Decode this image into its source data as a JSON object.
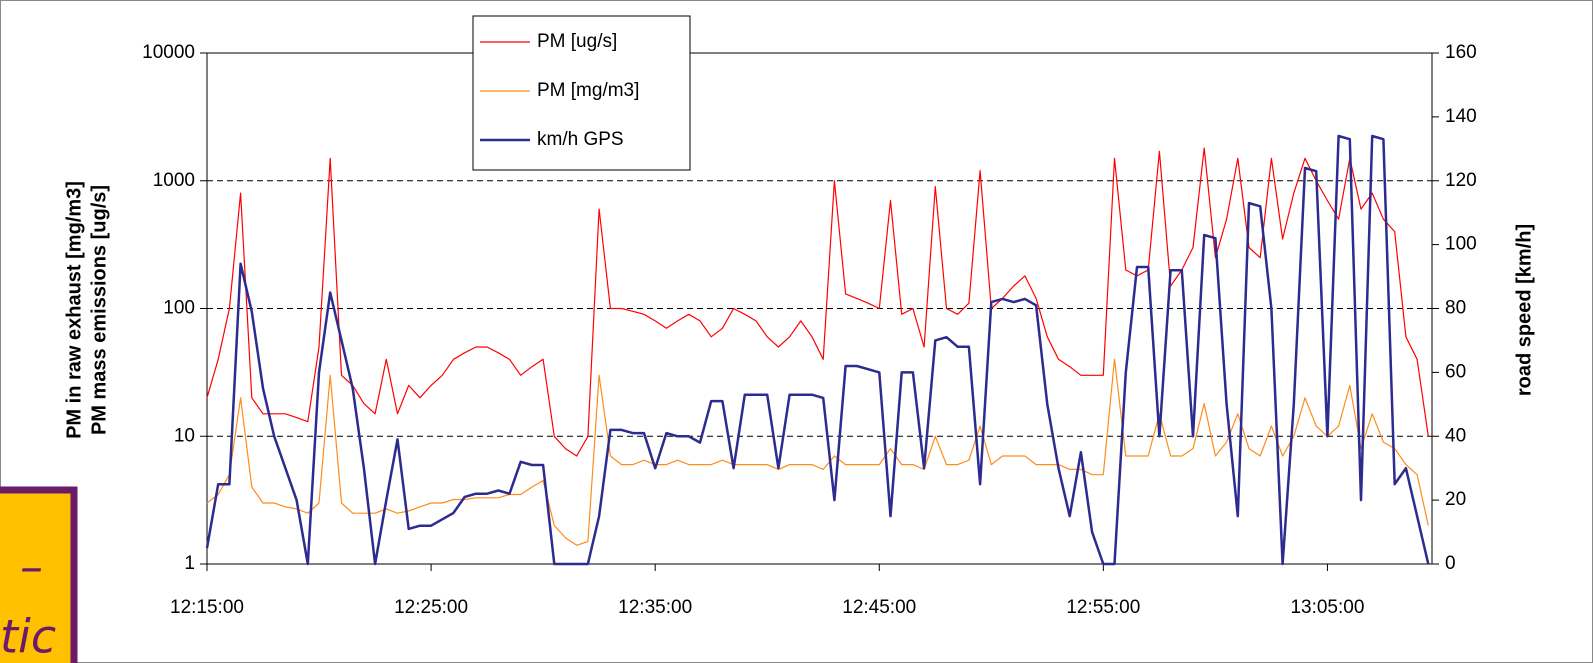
{
  "chart_data": {
    "type": "line",
    "ylabel": [
      "PM in raw exhaust [mg/m3]",
      "PM mass emissions [ug/s]"
    ],
    "y2label": "road speed [km/h]",
    "yscale": "log",
    "grid": true,
    "legend": "top",
    "xlim": [
      "12:15:00",
      "13:09:40"
    ],
    "xticks": [
      "12:15:00",
      "12:25:00",
      "12:35:00",
      "12:45:00",
      "12:55:00",
      "13:05:00"
    ],
    "ylim": [
      1,
      10000
    ],
    "yticks": [
      1,
      10,
      100,
      1000,
      10000
    ],
    "y2lim": [
      0,
      160
    ],
    "y2ticks": [
      0,
      20,
      40,
      60,
      80,
      100,
      120,
      140,
      160
    ],
    "x": [
      "12:15:00",
      "12:15:30",
      "12:16:00",
      "12:16:30",
      "12:17:00",
      "12:17:30",
      "12:18:00",
      "12:18:30",
      "12:19:00",
      "12:19:30",
      "12:20:00",
      "12:20:30",
      "12:21:00",
      "12:21:30",
      "12:22:00",
      "12:22:30",
      "12:23:00",
      "12:23:30",
      "12:24:00",
      "12:24:30",
      "12:25:00",
      "12:25:30",
      "12:26:00",
      "12:26:30",
      "12:27:00",
      "12:27:30",
      "12:28:00",
      "12:28:30",
      "12:29:00",
      "12:29:30",
      "12:30:00",
      "12:30:30",
      "12:31:00",
      "12:31:30",
      "12:32:00",
      "12:32:30",
      "12:33:00",
      "12:33:30",
      "12:34:00",
      "12:34:30",
      "12:35:00",
      "12:35:30",
      "12:36:00",
      "12:36:30",
      "12:37:00",
      "12:37:30",
      "12:38:00",
      "12:38:30",
      "12:39:00",
      "12:39:30",
      "12:40:00",
      "12:40:30",
      "12:41:00",
      "12:41:30",
      "12:42:00",
      "12:42:30",
      "12:43:00",
      "12:43:30",
      "12:44:00",
      "12:44:30",
      "12:45:00",
      "12:45:30",
      "12:46:00",
      "12:46:30",
      "12:47:00",
      "12:47:30",
      "12:48:00",
      "12:48:30",
      "12:49:00",
      "12:49:30",
      "12:50:00",
      "12:50:30",
      "12:51:00",
      "12:51:30",
      "12:52:00",
      "12:52:30",
      "12:53:00",
      "12:53:30",
      "12:54:00",
      "12:54:30",
      "12:55:00",
      "12:55:30",
      "12:56:00",
      "12:56:30",
      "12:57:00",
      "12:57:30",
      "12:58:00",
      "12:58:30",
      "12:59:00",
      "12:59:30",
      "13:00:00",
      "13:00:30",
      "13:01:00",
      "13:01:30",
      "13:02:00",
      "13:02:30",
      "13:03:00",
      "13:03:30",
      "13:04:00",
      "13:04:30",
      "13:05:00",
      "13:05:30",
      "13:06:00",
      "13:06:30",
      "13:07:00",
      "13:07:30",
      "13:08:00",
      "13:08:30",
      "13:09:00",
      "13:09:30"
    ],
    "series": [
      {
        "name": "PM [ug/s]",
        "color": "#ff0000",
        "axis": "y",
        "values": [
          20,
          40,
          100,
          800,
          20,
          15,
          15,
          15,
          14,
          13,
          50,
          1500,
          30,
          25,
          18,
          15,
          40,
          15,
          25,
          20,
          25,
          30,
          40,
          45,
          50,
          50,
          45,
          40,
          30,
          35,
          40,
          10,
          8,
          7,
          10,
          600,
          100,
          100,
          95,
          90,
          80,
          70,
          80,
          90,
          80,
          60,
          70,
          100,
          90,
          80,
          60,
          50,
          60,
          80,
          60,
          40,
          1000,
          130,
          120,
          110,
          100,
          700,
          90,
          100,
          50,
          900,
          100,
          90,
          110,
          1200,
          100,
          120,
          150,
          180,
          120,
          60,
          40,
          35,
          30,
          30,
          30,
          1500,
          200,
          180,
          200,
          1700,
          150,
          200,
          300,
          1800,
          250,
          500,
          1500,
          300,
          250,
          1500,
          350,
          800,
          1500,
          1000,
          700,
          500,
          1500,
          600,
          800,
          500,
          400,
          60,
          40,
          10
        ]
      },
      {
        "name": "PM [mg/m3]",
        "color": "#ff8c1a",
        "axis": "y",
        "values": [
          3,
          3.5,
          5,
          20,
          4,
          3,
          3,
          2.8,
          2.7,
          2.5,
          3,
          30,
          3,
          2.5,
          2.5,
          2.5,
          2.7,
          2.5,
          2.6,
          2.8,
          3,
          3,
          3.2,
          3.2,
          3.3,
          3.3,
          3.3,
          3.5,
          3.5,
          4,
          4.5,
          2,
          1.6,
          1.4,
          1.5,
          30,
          7,
          6,
          6,
          6.5,
          6,
          6,
          6.5,
          6,
          6,
          6,
          6.5,
          6,
          6,
          6,
          6,
          5.5,
          6,
          6,
          6,
          5.5,
          7,
          6,
          6,
          6,
          6,
          8,
          6,
          6,
          5.5,
          10,
          6,
          6,
          6.5,
          12,
          6,
          7,
          7,
          7,
          6,
          6,
          6,
          5.5,
          5.5,
          5,
          5,
          40,
          7,
          7,
          7,
          15,
          7,
          7,
          8,
          18,
          7,
          9,
          15,
          8,
          7,
          12,
          7,
          10,
          20,
          12,
          10,
          12,
          25,
          8,
          15,
          9,
          8,
          6,
          5,
          2
        ]
      },
      {
        "name": "km/h GPS",
        "color": "#2b2b90",
        "axis": "y2",
        "values": [
          5,
          25,
          25,
          94,
          79,
          55,
          40,
          30,
          20,
          0,
          60,
          85,
          70,
          55,
          30,
          0,
          20,
          39,
          11,
          12,
          12,
          14,
          16,
          21,
          22,
          22,
          23,
          22,
          32,
          31,
          31,
          0,
          0,
          0,
          0,
          15,
          42,
          42,
          41,
          41,
          30,
          41,
          40,
          40,
          38,
          51,
          51,
          30,
          53,
          53,
          53,
          30,
          53,
          53,
          53,
          52,
          20,
          62,
          62,
          61,
          60,
          15,
          60,
          60,
          30,
          70,
          71,
          68,
          68,
          25,
          82,
          83,
          82,
          83,
          81,
          50,
          30,
          15,
          35,
          10,
          0,
          0,
          60,
          93,
          93,
          40,
          92,
          92,
          40,
          103,
          102,
          50,
          15,
          113,
          112,
          80,
          0,
          50,
          124,
          123,
          40,
          134,
          133,
          20,
          134,
          133,
          25,
          30,
          15,
          0
        ]
      }
    ]
  },
  "sticker": {
    "lines": [
      "–",
      "tic"
    ]
  }
}
